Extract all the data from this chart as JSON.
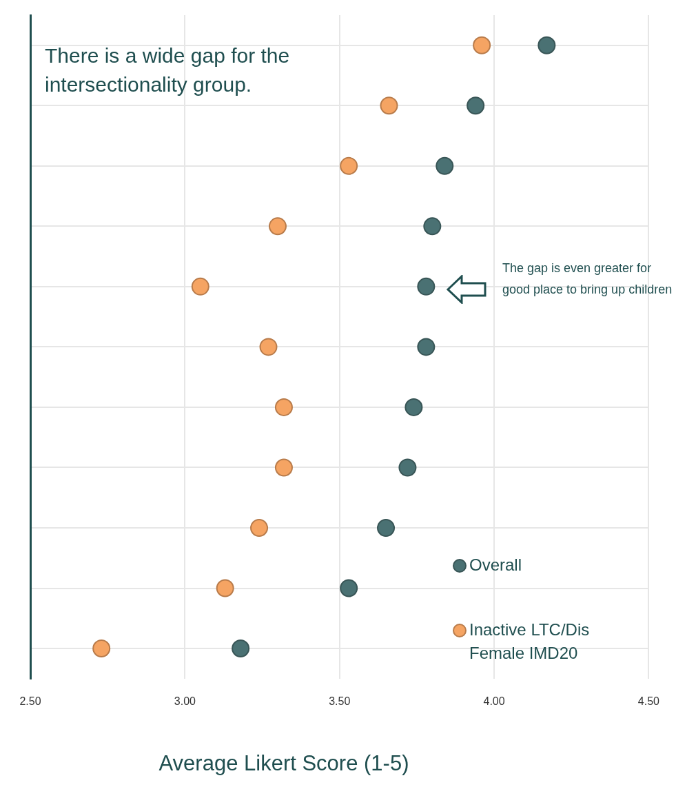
{
  "chart_data": {
    "type": "scatter",
    "orientation": "horizontal",
    "categories": [
      null,
      null,
      null,
      null,
      null,
      null,
      null,
      null,
      null,
      null,
      null
    ],
    "series": [
      {
        "name": "Overall",
        "color": "#4a7173",
        "values": [
          4.17,
          3.94,
          3.84,
          3.8,
          3.78,
          3.78,
          3.74,
          3.72,
          3.65,
          3.53,
          3.18
        ]
      },
      {
        "name": "Inactive LTC/Dis Female IMD20",
        "color": "#f5a463",
        "values": [
          3.96,
          3.66,
          3.53,
          3.3,
          3.05,
          3.27,
          3.32,
          3.32,
          3.24,
          3.13,
          2.73
        ]
      }
    ],
    "xlim": [
      2.5,
      4.5
    ],
    "xticks": [
      {
        "value": 2.5,
        "label": "2.50"
      },
      {
        "value": 3,
        "label": "3.00"
      },
      {
        "value": 3.5,
        "label": "3.50"
      },
      {
        "value": 4,
        "label": "4.00"
      },
      {
        "value": 4.5,
        "label": "4.50"
      }
    ],
    "xlabel": "Average Likert Score (1-5)",
    "annotations": [
      "There is a wide gap for the intersectionality group.",
      "The gap is even greater for good place to bring up children"
    ],
    "grid": true,
    "legend": "bottom right",
    "marker": "circle",
    "tick_labels": "x"
  }
}
